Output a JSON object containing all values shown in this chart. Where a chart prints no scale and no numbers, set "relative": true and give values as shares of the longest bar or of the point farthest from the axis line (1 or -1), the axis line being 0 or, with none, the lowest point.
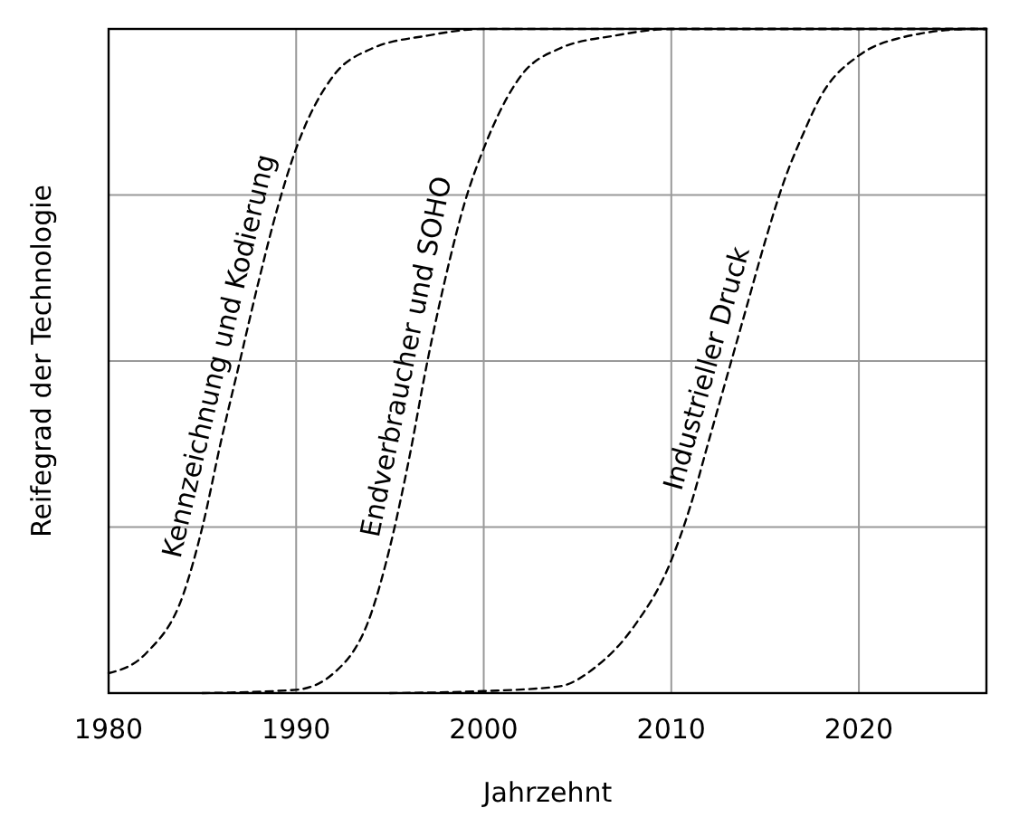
{
  "chart_data": {
    "type": "line",
    "relative": true,
    "xlabel": "Jahrzehnt",
    "ylabel": "Reifegrad der Technologie",
    "xlim": [
      1980,
      2026.8
    ],
    "xticks": [
      1980,
      1990,
      2000,
      2010,
      2020
    ],
    "grid": true,
    "marker": "none",
    "line_style": "dashed",
    "series": [
      {
        "name": "Kennzeichnung und Kodierung",
        "color": "#000000",
        "x": [
          1980,
          1982,
          1984,
          1985,
          1986,
          1987,
          1988,
          1989,
          1990,
          1992,
          1994,
          1997,
          2000,
          2026.8
        ],
        "values": [
          0.03,
          0.06,
          0.15,
          0.25,
          0.38,
          0.5,
          0.62,
          0.73,
          0.82,
          0.93,
          0.97,
          0.99,
          1,
          1
        ]
      },
      {
        "name": "Endverbraucher und SOHO",
        "color": "#000000",
        "x": [
          1985,
          1990,
          1992,
          1994,
          1995,
          1996,
          1997,
          1998,
          1999,
          2000,
          2002,
          2004,
          2007,
          2010,
          2026.8
        ],
        "values": [
          0,
          0.005,
          0.03,
          0.12,
          0.22,
          0.35,
          0.5,
          0.63,
          0.74,
          0.82,
          0.93,
          0.97,
          0.99,
          1,
          1
        ]
      },
      {
        "name": "Industrieller Druck",
        "color": "#000000",
        "x": [
          1995,
          2000,
          2004,
          2006,
          2008,
          2010,
          2011,
          2012,
          2013,
          2014,
          2015,
          2016,
          2017,
          2018,
          2020,
          2022,
          2026,
          2026.8
        ],
        "values": [
          0,
          0.003,
          0.01,
          0.04,
          0.1,
          0.2,
          0.28,
          0.38,
          0.48,
          0.58,
          0.68,
          0.77,
          0.84,
          0.9,
          0.96,
          0.985,
          1,
          1
        ]
      }
    ]
  }
}
